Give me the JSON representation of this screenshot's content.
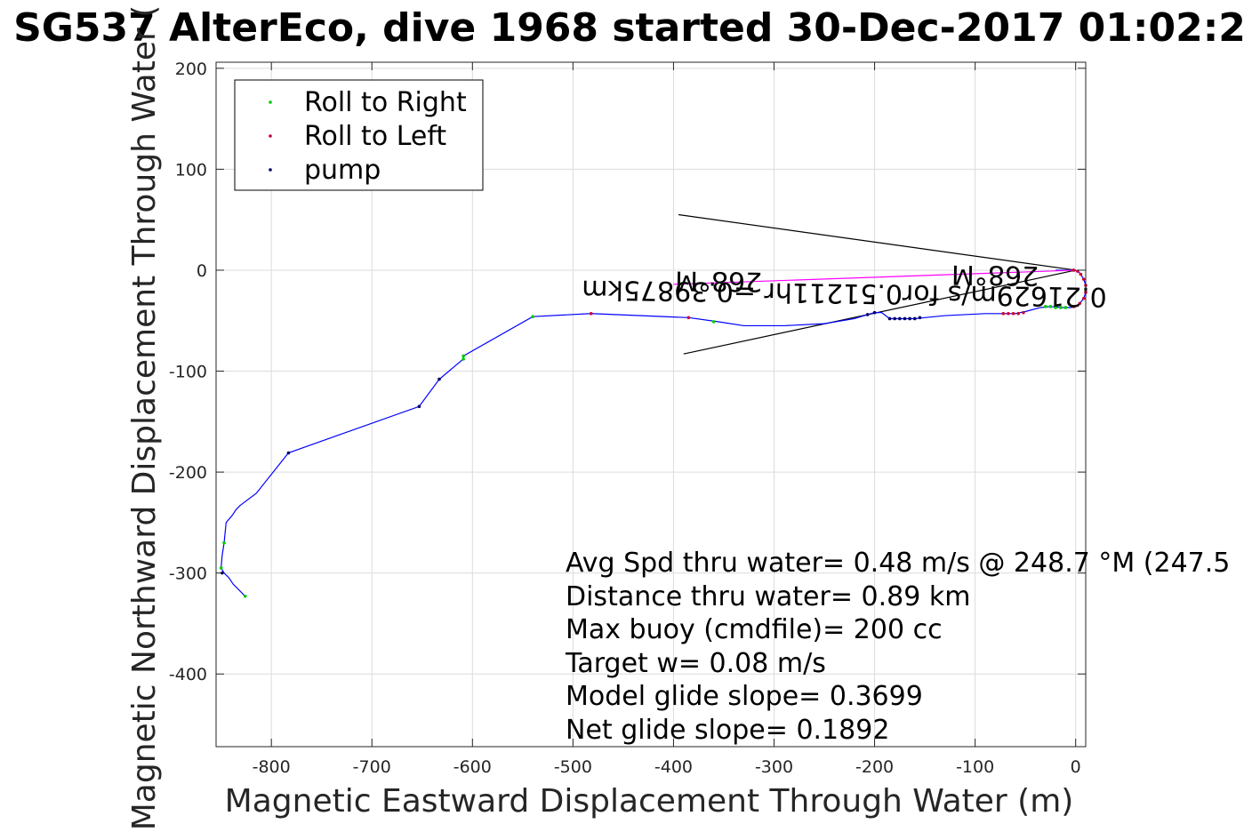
{
  "chart_data": {
    "type": "line",
    "title": "SG537 AlterEco, dive 1968 started 30-Dec-2017 01:02:2",
    "xlabel": "Magnetic Eastward Displacement Through Water (m)",
    "ylabel": "Magnetic Northward Displacement Through Water (",
    "xlim": [
      -855,
      10
    ],
    "ylim": [
      -472,
      206
    ],
    "xticks": [
      -800,
      -700,
      -600,
      -500,
      -400,
      -300,
      -200,
      -100,
      0
    ],
    "yticks": [
      200,
      100,
      0,
      -100,
      -200,
      -300,
      -400
    ],
    "grid": true,
    "legend_position": "top-left",
    "legend": [
      "Roll to Right",
      "Roll to Left",
      "pump"
    ],
    "series": [
      {
        "name": "track",
        "color": "#0000ff",
        "x": [
          -826,
          -838,
          -842,
          -847,
          -850,
          -849,
          -847,
          -845,
          -839,
          -835,
          -831,
          -815,
          -783,
          -653,
          -633,
          -609,
          -609,
          -540,
          -482,
          -385,
          -356,
          -330,
          -290,
          -250,
          -220,
          -207,
          -200,
          -193,
          -185,
          -176,
          -168,
          -160,
          -150,
          -130,
          -90,
          -80,
          -70,
          -60,
          -50,
          -35,
          -25,
          -15,
          -5,
          0,
          4,
          8,
          10,
          10,
          8,
          5,
          2,
          -2,
          -5,
          -10,
          -20
        ],
        "y": [
          -323,
          -311,
          -305,
          -300,
          -295,
          -283,
          -270,
          -250,
          -243,
          -237,
          -233,
          -221,
          -181,
          -135,
          -108,
          -88,
          -85,
          -46,
          -43,
          -47,
          -51,
          -55,
          -55,
          -53,
          -48,
          -44,
          -42,
          -42,
          -48,
          -48,
          -48,
          -48,
          -47,
          -45,
          -43,
          -43,
          -43,
          -43,
          -41,
          -37,
          -36,
          -37,
          -37,
          -36,
          -33,
          -28,
          -22,
          -15,
          -9,
          -4,
          -1,
          0,
          0,
          0,
          0
        ]
      },
      {
        "name": "heading line",
        "color": "#ff00ff",
        "x": [
          -400,
          0
        ],
        "y": [
          -14,
          0
        ]
      }
    ],
    "markers": [
      {
        "name": "Roll to Right",
        "color": "#00cc00",
        "x": [
          -826,
          -850,
          -847,
          -609,
          -609,
          -540,
          -360,
          -30,
          -25,
          -20,
          -15,
          -10
        ],
        "y": [
          -323,
          -295,
          -270,
          -88,
          -85,
          -46,
          -51,
          -36,
          -36,
          -37,
          -37,
          -37
        ]
      },
      {
        "name": "Roll to Left",
        "color": "#cc0033",
        "x": [
          -482,
          -385,
          -72,
          -67,
          -62,
          -57,
          -52,
          -2,
          4,
          8,
          10,
          10,
          8,
          5,
          2,
          -2
        ],
        "y": [
          -43,
          -47,
          -43,
          -43,
          -43,
          -43,
          -42,
          -36,
          -33,
          -28,
          -22,
          -15,
          -9,
          -4,
          -1,
          0
        ]
      },
      {
        "name": "pump",
        "color": "#000066",
        "x": [
          -849,
          -783,
          -653,
          -633,
          -207,
          -200,
          -185,
          -180,
          -175,
          -170,
          -165,
          -160,
          -155
        ],
        "y": [
          -300,
          -181,
          -135,
          -108,
          -44,
          -42,
          -48,
          -48,
          -48,
          -48,
          -48,
          -48,
          -47
        ]
      }
    ],
    "fan_lines": [
      {
        "x": [
          -395,
          0
        ],
        "y": [
          55,
          0
        ]
      },
      {
        "x": [
          -390,
          0
        ],
        "y": [
          -83,
          0
        ]
      }
    ],
    "annotations": [
      {
        "text": "0.21629m/s for0.51211hr =0.39875km",
        "x": -230,
        "y": -14,
        "rotated": true
      },
      {
        "text": "268°M",
        "x": -355,
        "y": -2,
        "rotated": true
      },
      {
        "text": "268°M",
        "x": -80,
        "y": 4,
        "rotated": true
      }
    ],
    "summary": [
      "Avg Spd thru water=  0.48 m/s @ 248.7 °M (247.5",
      "Distance thru water=  0.89 km",
      "Max buoy (cmdfile)= 200 cc",
      "Target w= 0.08 m/s",
      "Model glide slope= 0.3699",
      "Net glide slope= 0.1892"
    ]
  }
}
